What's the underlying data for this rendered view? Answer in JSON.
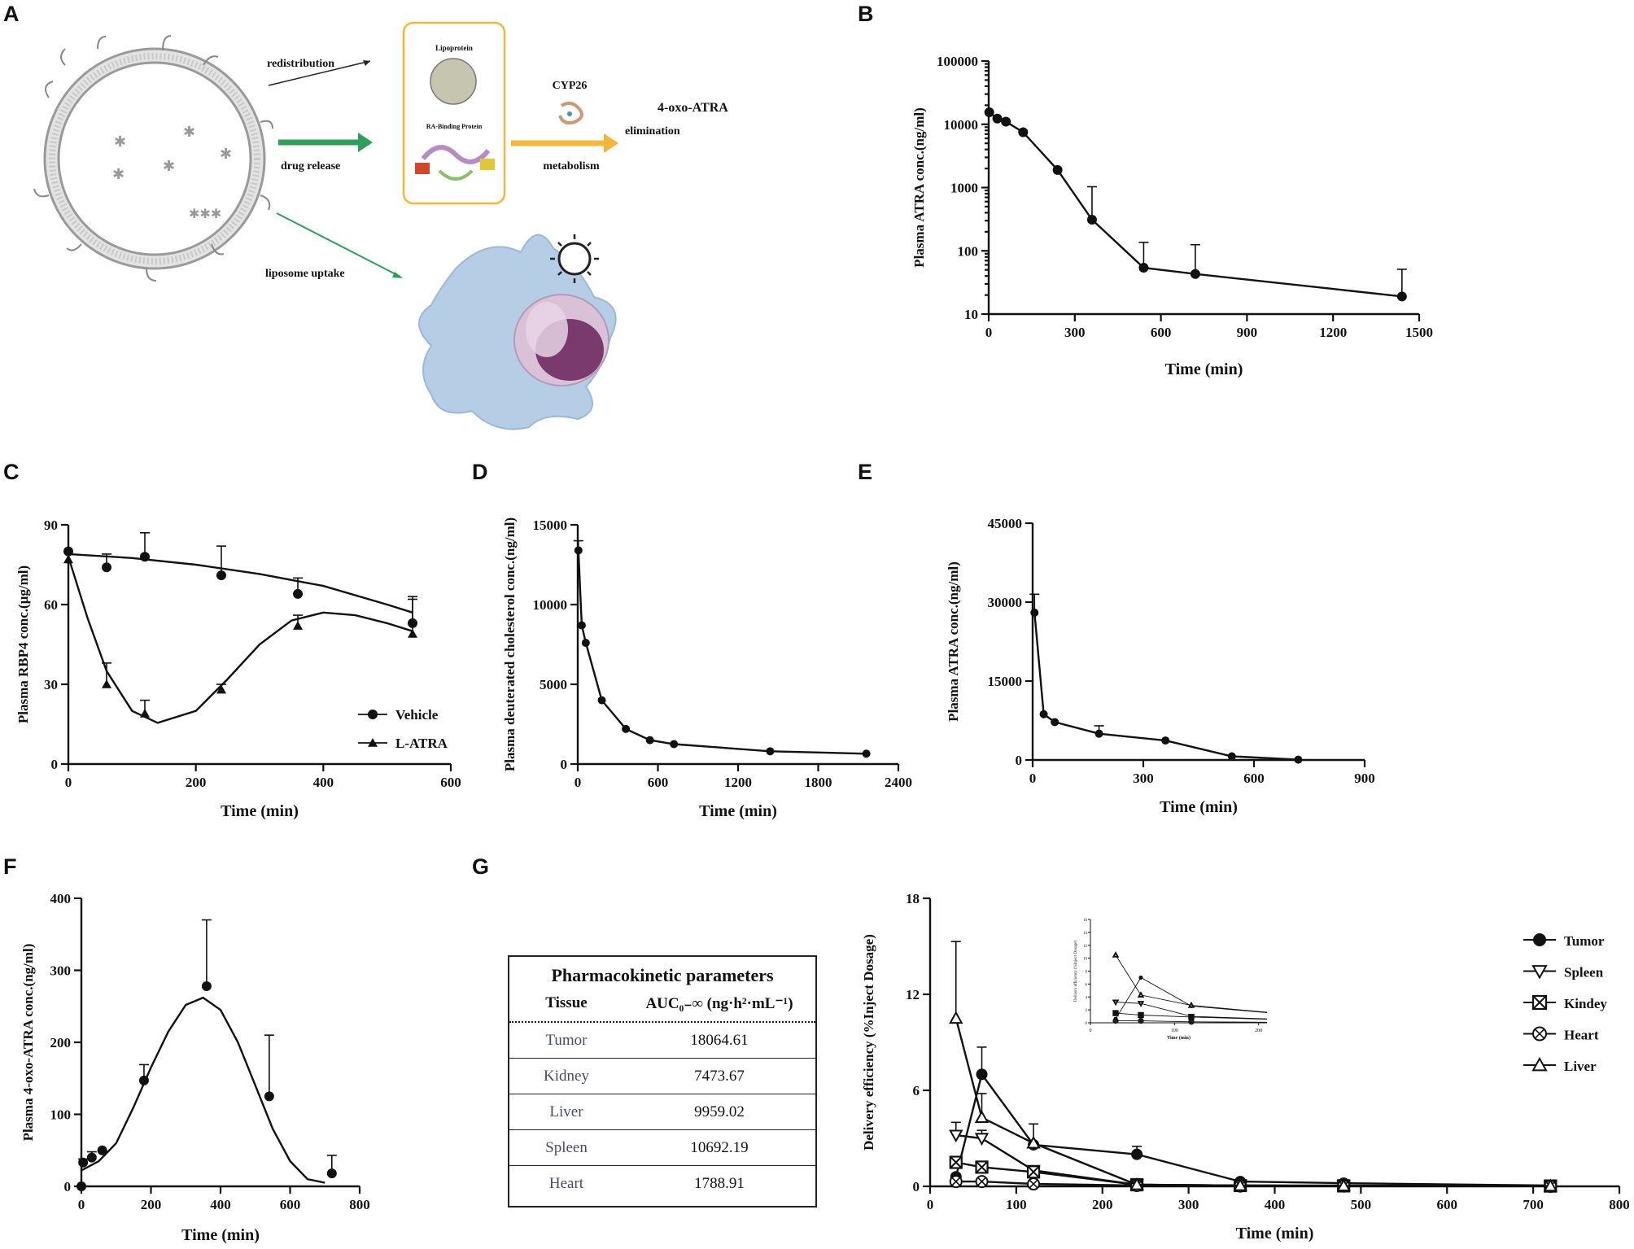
{
  "panels": {
    "A": {
      "letter": "A",
      "labels": {
        "redistribution": "redistribution",
        "drug_release": "drug release",
        "liposome_uptake": "liposome uptake",
        "lipoprotein": "Lipoprotein",
        "ra_binding": "RA-Binding Protein",
        "cyp26": "CYP26",
        "metabolism": "metabolism",
        "elimination": "elimination",
        "product": "4-oxo-ATRA"
      },
      "colors": {
        "green": "#2e9e5a",
        "orange": "#f3b73a",
        "liposome": "#bdbdbd",
        "cell": "#b6cde6",
        "nucleus": "#7a3a6e"
      }
    },
    "B": {
      "letter": "B"
    },
    "C": {
      "letter": "C"
    },
    "D": {
      "letter": "D"
    },
    "E": {
      "letter": "E"
    },
    "F": {
      "letter": "F"
    },
    "G": {
      "letter": "G",
      "table": {
        "title": "Pharmacokinetic parameters",
        "col1": "Tissue",
        "col2": "AUC₀₋∞ (ng·h²·mL⁻¹)",
        "rows": [
          {
            "tissue": "Tumor",
            "auc": "18064.61"
          },
          {
            "tissue": "Kidney",
            "auc": "7473.67"
          },
          {
            "tissue": "Liver",
            "auc": "9959.02"
          },
          {
            "tissue": "Spleen",
            "auc": "10692.19"
          },
          {
            "tissue": "Heart",
            "auc": "1788.91"
          }
        ]
      }
    }
  },
  "chart_data": [
    {
      "id": "B",
      "type": "line",
      "yscale": "log",
      "xlabel": "Time (min)",
      "ylabel": "Plasma ATRA conc.(ng/ml)",
      "xlim": [
        0,
        1500
      ],
      "ylim": [
        10,
        100000
      ],
      "xticks": [
        "0",
        "300",
        "600",
        "900",
        "1200",
        "1500"
      ],
      "yticks": [
        "10",
        "100",
        "1000",
        "10000",
        "100000"
      ],
      "series": [
        {
          "name": "ATRA",
          "marker": "circle",
          "x": [
            2,
            30,
            60,
            120,
            240,
            360,
            540,
            720,
            1440
          ],
          "y": [
            15500,
            12300,
            11000,
            7500,
            1900,
            310,
            54,
            43,
            19
          ],
          "err": [
            0,
            0,
            0,
            0,
            0,
            720,
            82,
            82,
            32
          ]
        }
      ]
    },
    {
      "id": "C",
      "type": "line",
      "xlabel": "Time (min)",
      "ylabel": "Plasma RBP4 conc.(μg/ml)",
      "xlim": [
        0,
        600
      ],
      "ylim": [
        0,
        90
      ],
      "xticks": [
        "0",
        "200",
        "400",
        "600"
      ],
      "yticks": [
        "0",
        "30",
        "60",
        "90"
      ],
      "legend": [
        "Vehicle",
        "L-ATRA"
      ],
      "series": [
        {
          "name": "Vehicle",
          "marker": "circle",
          "x": [
            0,
            60,
            120,
            240,
            360,
            540
          ],
          "y": [
            80,
            74,
            78,
            71,
            64,
            53
          ],
          "err": [
            0,
            5,
            9,
            11,
            6,
            9
          ],
          "fit_x": [
            0,
            100,
            200,
            300,
            400,
            500,
            540
          ],
          "fit_y": [
            79,
            77.5,
            75,
            71.5,
            67,
            60,
            57
          ]
        },
        {
          "name": "L-ATRA",
          "marker": "triangle",
          "x": [
            0,
            60,
            120,
            240,
            360,
            540
          ],
          "y": [
            77,
            30,
            19,
            28,
            52,
            49
          ],
          "err": [
            0,
            8,
            5,
            2,
            4,
            14
          ],
          "fit_x": [
            0,
            30,
            60,
            100,
            140,
            200,
            250,
            300,
            350,
            400,
            450,
            500,
            540
          ],
          "fit_y": [
            78,
            55,
            35,
            20,
            15.5,
            20,
            32,
            45,
            54,
            57,
            56,
            53,
            50
          ]
        }
      ]
    },
    {
      "id": "D",
      "type": "line",
      "xlabel": "Time (min)",
      "ylabel": "Plasma deuterated cholesterol conc.(ng/ml)",
      "xlim": [
        0,
        2400
      ],
      "ylim": [
        0,
        15000
      ],
      "xticks": [
        "0",
        "600",
        "1200",
        "1800",
        "2400"
      ],
      "yticks": [
        "0",
        "5000",
        "10000",
        "15000"
      ],
      "series": [
        {
          "name": "cholesterol",
          "marker": "circle",
          "x": [
            5,
            30,
            60,
            180,
            360,
            540,
            720,
            1440,
            2160
          ],
          "y": [
            13400,
            8700,
            7600,
            4000,
            2200,
            1500,
            1250,
            800,
            650
          ],
          "err": [
            600,
            0,
            0,
            0,
            0,
            0,
            0,
            0,
            0
          ]
        }
      ]
    },
    {
      "id": "E",
      "type": "line",
      "xlabel": "Time (min)",
      "ylabel": "Plasma ATRA conc.(ng/ml)",
      "xlim": [
        0,
        900
      ],
      "ylim": [
        0,
        45000
      ],
      "xticks": [
        "0",
        "300",
        "600",
        "900"
      ],
      "yticks": [
        "0",
        "15000",
        "30000",
        "45000"
      ],
      "series": [
        {
          "name": "ATRA",
          "marker": "circle",
          "x": [
            5,
            30,
            60,
            180,
            360,
            540,
            720
          ],
          "y": [
            28000,
            8700,
            7200,
            5000,
            3700,
            700,
            60
          ],
          "err": [
            3500,
            0,
            0,
            1500,
            0,
            0,
            0
          ]
        }
      ]
    },
    {
      "id": "F",
      "type": "line",
      "xlabel": "Time (min)",
      "ylabel": "Plasma 4-oxo-ATRA conc.(ng/ml)",
      "xlim": [
        0,
        800
      ],
      "ylim": [
        0,
        400
      ],
      "xticks": [
        "0",
        "200",
        "400",
        "600",
        "800"
      ],
      "yticks": [
        "0",
        "100",
        "200",
        "300",
        "400"
      ],
      "series": [
        {
          "name": "4-oxo-ATRA",
          "marker": "circle",
          "x": [
            0,
            5,
            30,
            60,
            180,
            360,
            540,
            720
          ],
          "y": [
            0,
            33,
            40,
            50,
            147,
            278,
            125,
            18
          ],
          "err": [
            0,
            5,
            8,
            0,
            22,
            92,
            85,
            25
          ],
          "fit_x": [
            0,
            50,
            100,
            150,
            200,
            250,
            300,
            350,
            400,
            450,
            500,
            550,
            600,
            650,
            700
          ],
          "fit_y": [
            22,
            35,
            60,
            110,
            165,
            215,
            252,
            262,
            245,
            200,
            140,
            80,
            35,
            10,
            5
          ]
        }
      ]
    },
    {
      "id": "G",
      "type": "line",
      "xlabel": "Time (min)",
      "ylabel": "Delivery efficiency (%Inject Dosage)",
      "xlim": [
        0,
        800
      ],
      "ylim": [
        0,
        18
      ],
      "xticks": [
        "0",
        "100",
        "200",
        "300",
        "400",
        "500",
        "600",
        "700",
        "800"
      ],
      "yticks": [
        "0",
        "6",
        "12",
        "18"
      ],
      "legend": [
        "Tumor",
        "Spleen",
        "Kindey",
        "Heart",
        "Liver"
      ],
      "series": [
        {
          "name": "Tumor",
          "marker": "circle",
          "x": [
            30,
            60,
            120,
            240,
            360,
            480,
            720
          ],
          "y": [
            0.6,
            7.0,
            2.6,
            2.0,
            0.3,
            0.2,
            0.05
          ],
          "err": [
            0,
            1.7,
            0,
            0.5,
            0,
            0,
            0
          ]
        },
        {
          "name": "Spleen",
          "marker": "triangle-down",
          "x": [
            30,
            60,
            120,
            240,
            360,
            480,
            720
          ],
          "y": [
            3.2,
            3.0,
            1.0,
            0.1,
            0.05,
            0.05,
            0.02
          ],
          "err": [
            0.8,
            0.5,
            0,
            0,
            0,
            0,
            0
          ]
        },
        {
          "name": "Kindey",
          "marker": "boxed-x",
          "x": [
            30,
            60,
            120,
            240,
            360,
            480,
            720
          ],
          "y": [
            1.5,
            1.2,
            0.9,
            0.1,
            0.05,
            0.03,
            0.02
          ],
          "err": [
            0,
            0,
            0,
            0,
            0,
            0,
            0
          ]
        },
        {
          "name": "Heart",
          "marker": "circle-x",
          "x": [
            30,
            60,
            120,
            240,
            360,
            480,
            720
          ],
          "y": [
            0.3,
            0.3,
            0.15,
            0.05,
            0.02,
            0.02,
            0.01
          ],
          "err": [
            0,
            0,
            0,
            0,
            0,
            0,
            0
          ]
        },
        {
          "name": "Liver",
          "marker": "triangle-up",
          "x": [
            30,
            60,
            120,
            240,
            360,
            480,
            720
          ],
          "y": [
            10.5,
            4.3,
            2.7,
            0.1,
            0.05,
            0.03,
            0.02
          ],
          "err": [
            4.8,
            1.5,
            1.2,
            0,
            0,
            0,
            0
          ]
        }
      ],
      "inset": {
        "xlabel": "Time (min)",
        "ylabel": "Delivery efficiency (%Inject Dosage)",
        "xlim": [
          0,
          210
        ],
        "ylim": [
          0,
          16
        ],
        "xticks": [
          "0",
          "100",
          "200"
        ],
        "yticks": [
          "0",
          "2",
          "4",
          "6",
          "8",
          "10",
          "12",
          "14",
          "16"
        ]
      }
    }
  ]
}
